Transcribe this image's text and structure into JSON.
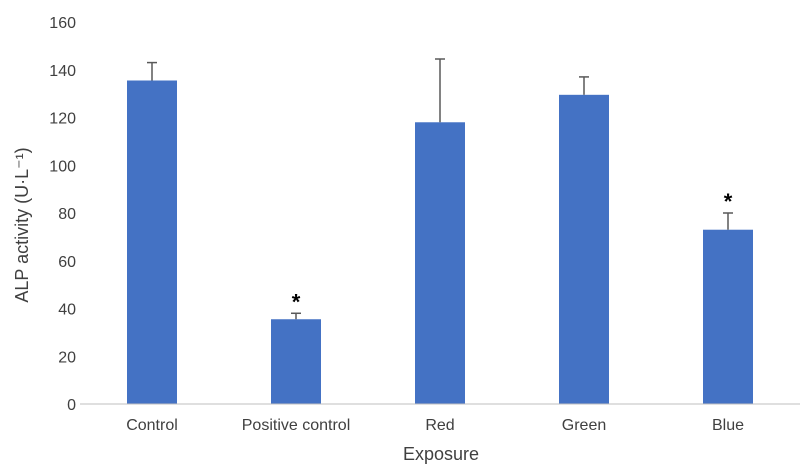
{
  "chart_data": {
    "type": "bar",
    "categories": [
      "Control",
      "Positive control",
      "Red",
      "Green",
      "Blue"
    ],
    "series": [
      {
        "values": [
          135.5,
          35.5,
          118,
          129.5,
          73
        ],
        "errors": [
          7.5,
          2.5,
          26.5,
          7.5,
          7
        ],
        "significance": [
          "",
          "*",
          "",
          "",
          "*"
        ]
      }
    ],
    "xlabel": "Exposure",
    "ylabel": "ALP activity (U·L⁻¹)",
    "ylim": [
      0,
      160
    ],
    "yticks": [
      0,
      20,
      40,
      60,
      80,
      100,
      120,
      140,
      160
    ],
    "grid": false,
    "legend": "none",
    "colors": {
      "bar": "#4472C4",
      "error_bar": "#595959",
      "axis": "#BFBFBF"
    }
  }
}
